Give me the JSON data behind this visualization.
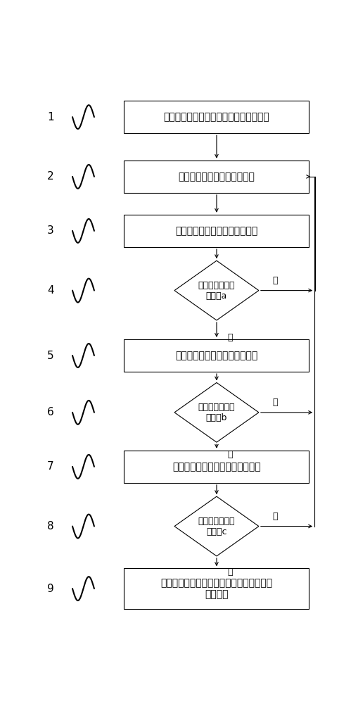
{
  "bg_color": "#ffffff",
  "box_edge": "#000000",
  "labels": {
    "1": "采集信号，建立三维模型，设定初始位置",
    "2": "采集输电导线各点的位移偏量",
    "3": "将位移偏量传至监测中心服务器",
    "4": "判断位移偏量是\n否大于a",
    "5": "在三维模型的对应点上作出标记",
    "6": "判断位移偏量是\n否大于b",
    "7": "在三维模型对应点上作出黄色标记",
    "8": "判断位移偏量是\n否大于c",
    "9": "在三维模型对应点上作出红色标记，并发出\n预警信号"
  },
  "yes_label": "是",
  "no_label": "否",
  "numbers": [
    1,
    2,
    3,
    4,
    5,
    6,
    7,
    8,
    9
  ]
}
